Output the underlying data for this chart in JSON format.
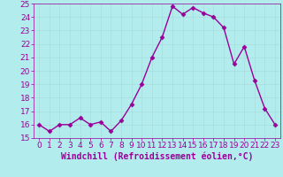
{
  "x": [
    0,
    1,
    2,
    3,
    4,
    5,
    6,
    7,
    8,
    9,
    10,
    11,
    12,
    13,
    14,
    15,
    16,
    17,
    18,
    19,
    20,
    21,
    22,
    23
  ],
  "y": [
    16.0,
    15.5,
    16.0,
    16.0,
    16.5,
    16.0,
    16.2,
    15.5,
    16.3,
    17.5,
    19.0,
    21.0,
    22.5,
    24.8,
    24.2,
    24.7,
    24.3,
    24.0,
    23.2,
    20.5,
    21.8,
    19.3,
    17.2,
    16.0
  ],
  "line_color": "#990099",
  "marker": "D",
  "marker_size": 2.5,
  "bg_color": "#b3ecec",
  "grid_color": "#c8e8e8",
  "xlabel": "Windchill (Refroidissement éolien,°C)",
  "xlabel_color": "#990099",
  "tick_color": "#990099",
  "ylim": [
    15,
    25
  ],
  "xlim_min": -0.5,
  "xlim_max": 23.5,
  "yticks": [
    15,
    16,
    17,
    18,
    19,
    20,
    21,
    22,
    23,
    24,
    25
  ],
  "xticks": [
    0,
    1,
    2,
    3,
    4,
    5,
    6,
    7,
    8,
    9,
    10,
    11,
    12,
    13,
    14,
    15,
    16,
    17,
    18,
    19,
    20,
    21,
    22,
    23
  ],
  "font_size": 6.5,
  "xlabel_fontsize": 7,
  "linewidth": 1.0
}
